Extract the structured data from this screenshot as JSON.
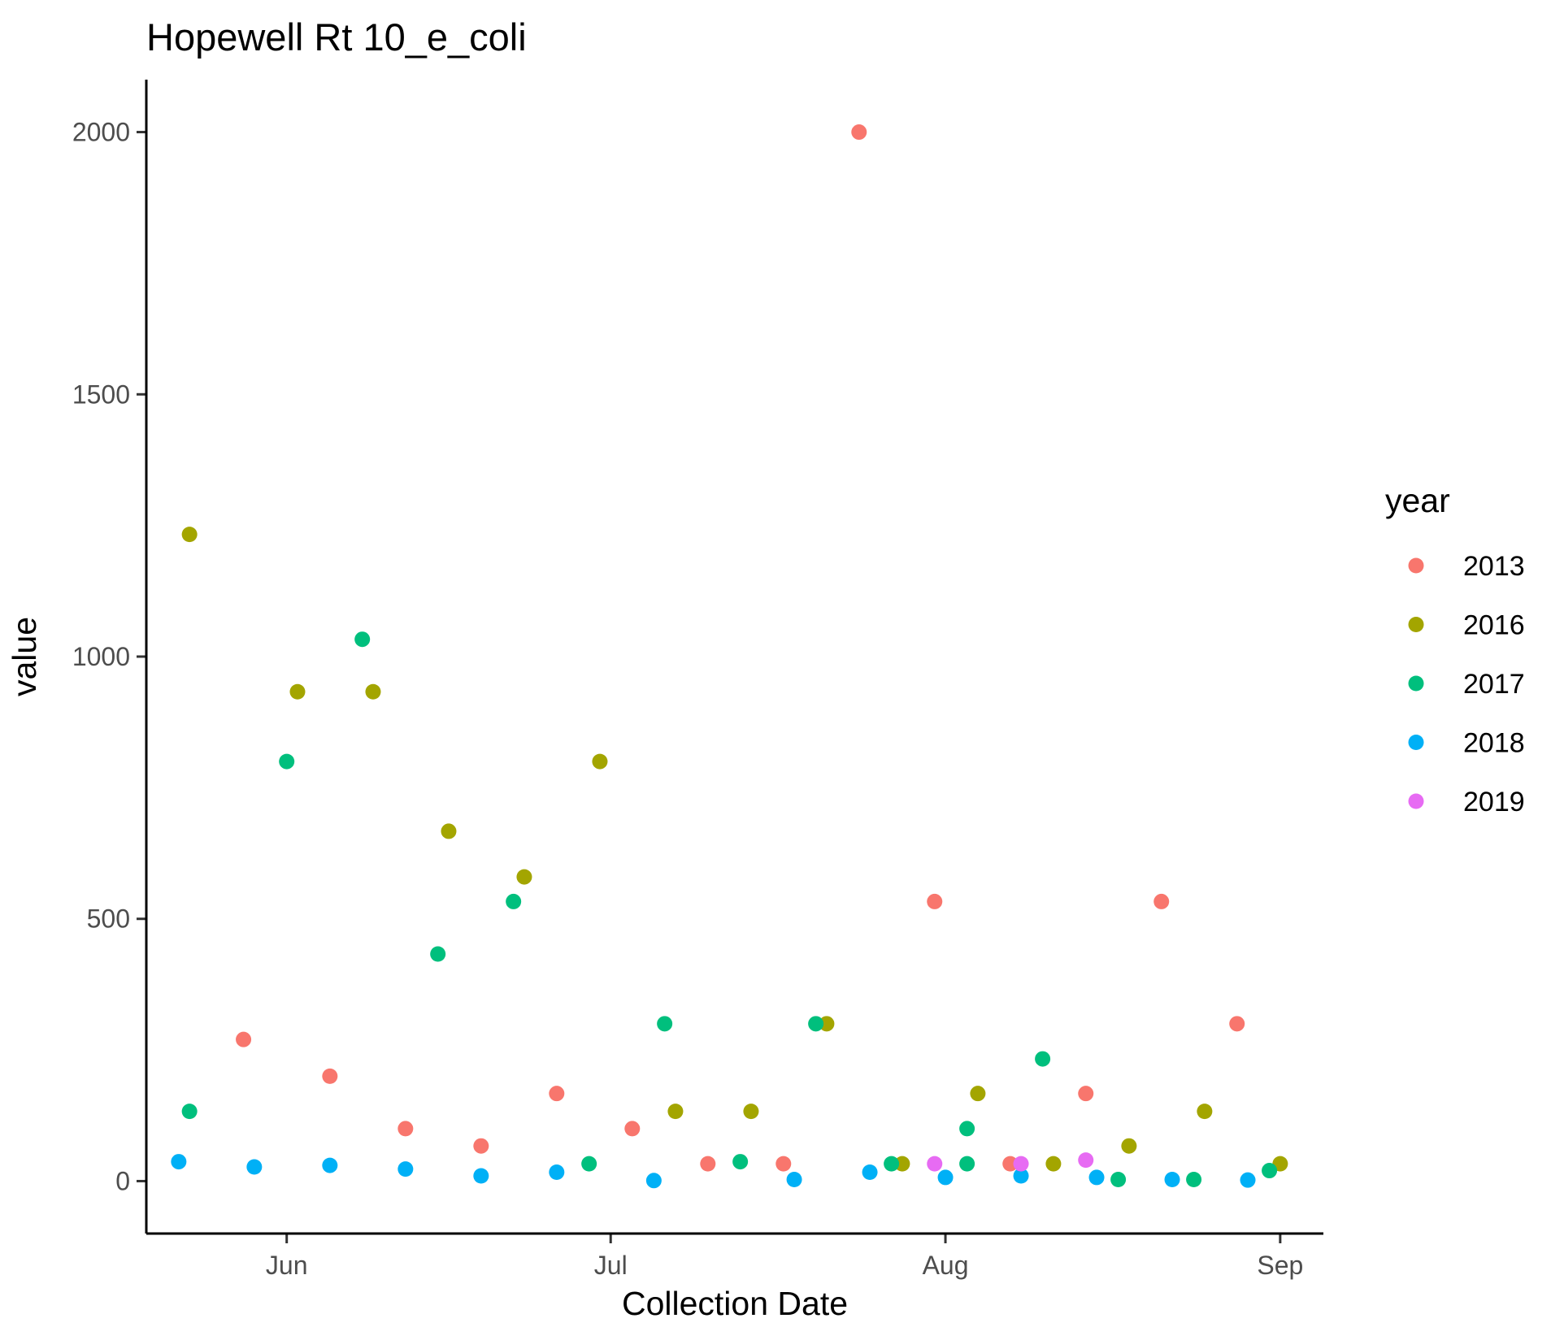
{
  "chart_data": {
    "type": "scatter",
    "title": "Hopewell Rt 10_e_coli",
    "xlabel": "Collection Date",
    "ylabel": "value",
    "x_is_date": true,
    "xlim": [
      "05-19",
      "09-05"
    ],
    "x_ticks": [
      {
        "date": "06-01",
        "label": "Jun"
      },
      {
        "date": "07-01",
        "label": "Jul"
      },
      {
        "date": "08-01",
        "label": "Aug"
      },
      {
        "date": "09-01",
        "label": "Sep"
      }
    ],
    "ylim": [
      -100,
      2100
    ],
    "y_ticks": [
      0,
      500,
      1000,
      1500,
      2000
    ],
    "grid": false,
    "legend": {
      "title": "year",
      "position": "right"
    },
    "series": [
      {
        "name": "2013",
        "color": "#F8766D",
        "points": [
          {
            "x": "05-28",
            "y": 270
          },
          {
            "x": "06-05",
            "y": 200
          },
          {
            "x": "06-12",
            "y": 100
          },
          {
            "x": "06-19",
            "y": 67
          },
          {
            "x": "06-26",
            "y": 167
          },
          {
            "x": "07-03",
            "y": 100
          },
          {
            "x": "07-10",
            "y": 33
          },
          {
            "x": "07-17",
            "y": 33
          },
          {
            "x": "07-24",
            "y": 2000
          },
          {
            "x": "07-31",
            "y": 533
          },
          {
            "x": "08-07",
            "y": 33
          },
          {
            "x": "08-14",
            "y": 167
          },
          {
            "x": "08-21",
            "y": 533
          },
          {
            "x": "08-28",
            "y": 300
          }
        ]
      },
      {
        "name": "2016",
        "color": "#A3A500",
        "points": [
          {
            "x": "05-23",
            "y": 1233
          },
          {
            "x": "06-02",
            "y": 933
          },
          {
            "x": "06-09",
            "y": 933
          },
          {
            "x": "06-16",
            "y": 667
          },
          {
            "x": "06-23",
            "y": 580
          },
          {
            "x": "06-30",
            "y": 800
          },
          {
            "x": "07-07",
            "y": 133
          },
          {
            "x": "07-14",
            "y": 133
          },
          {
            "x": "07-21",
            "y": 300
          },
          {
            "x": "07-28",
            "y": 33
          },
          {
            "x": "08-04",
            "y": 167
          },
          {
            "x": "08-11",
            "y": 33
          },
          {
            "x": "08-18",
            "y": 67
          },
          {
            "x": "08-25",
            "y": 133
          },
          {
            "x": "09-01",
            "y": 33
          }
        ]
      },
      {
        "name": "2017",
        "color": "#00BF7D",
        "points": [
          {
            "x": "05-23",
            "y": 133
          },
          {
            "x": "06-01",
            "y": 800
          },
          {
            "x": "06-08",
            "y": 1033
          },
          {
            "x": "06-15",
            "y": 433
          },
          {
            "x": "06-22",
            "y": 533
          },
          {
            "x": "06-29",
            "y": 33
          },
          {
            "x": "07-06",
            "y": 300
          },
          {
            "x": "07-13",
            "y": 37
          },
          {
            "x": "07-20",
            "y": 300
          },
          {
            "x": "07-27",
            "y": 33
          },
          {
            "x": "08-03",
            "y": 100
          },
          {
            "x": "08-03",
            "y": 33
          },
          {
            "x": "08-10",
            "y": 233
          },
          {
            "x": "08-17",
            "y": 3
          },
          {
            "x": "08-24",
            "y": 3
          },
          {
            "x": "08-31",
            "y": 20
          }
        ]
      },
      {
        "name": "2018",
        "color": "#00B0F6",
        "points": [
          {
            "x": "05-22",
            "y": 37
          },
          {
            "x": "05-29",
            "y": 27
          },
          {
            "x": "06-05",
            "y": 30
          },
          {
            "x": "06-12",
            "y": 23
          },
          {
            "x": "06-19",
            "y": 10
          },
          {
            "x": "06-26",
            "y": 17
          },
          {
            "x": "07-05",
            "y": 1
          },
          {
            "x": "07-18",
            "y": 3
          },
          {
            "x": "07-25",
            "y": 17
          },
          {
            "x": "08-01",
            "y": 7
          },
          {
            "x": "08-08",
            "y": 10
          },
          {
            "x": "08-15",
            "y": 7
          },
          {
            "x": "08-22",
            "y": 3
          },
          {
            "x": "08-29",
            "y": 2
          }
        ]
      },
      {
        "name": "2019",
        "color": "#E76BF3",
        "points": [
          {
            "x": "07-31",
            "y": 33
          },
          {
            "x": "08-08",
            "y": 33
          },
          {
            "x": "08-14",
            "y": 40
          }
        ]
      }
    ]
  }
}
